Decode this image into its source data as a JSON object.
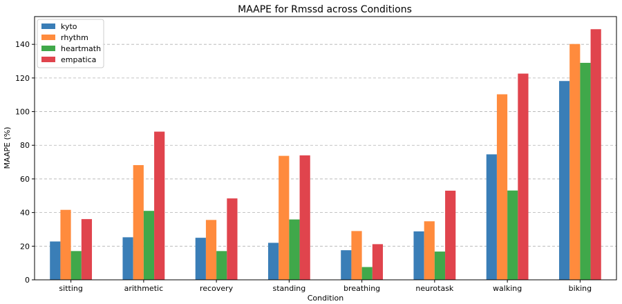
{
  "chart_data": {
    "type": "bar",
    "title": "MAAPE for Rmssd across Conditions",
    "xlabel": "Condition",
    "ylabel": "MAAPE (%)",
    "categories": [
      "sitting",
      "arithmetic",
      "recovery",
      "standing",
      "breathing",
      "neurotask",
      "walking",
      "biking"
    ],
    "series": [
      {
        "name": "kyto",
        "color": "#3a7eb7",
        "values": [
          22.8,
          25.3,
          25.0,
          22.0,
          17.6,
          28.8,
          74.6,
          118.2
        ]
      },
      {
        "name": "rhythm",
        "color": "#ff8b3d",
        "values": [
          41.6,
          68.2,
          35.6,
          73.7,
          29.0,
          34.8,
          110.3,
          140.2
        ]
      },
      {
        "name": "heartmath",
        "color": "#40a84a",
        "values": [
          17.1,
          41.0,
          17.1,
          35.9,
          7.6,
          16.8,
          53.1,
          129.0
        ]
      },
      {
        "name": "empatica",
        "color": "#e0444d",
        "values": [
          36.1,
          88.1,
          48.4,
          74.0,
          21.2,
          53.0,
          122.6,
          149.0
        ]
      }
    ],
    "yticks": [
      0,
      20,
      40,
      60,
      80,
      100,
      120,
      140
    ],
    "ylim": [
      0,
      156.5
    ],
    "grid": "y-dashed",
    "legend_position": "top-left"
  }
}
